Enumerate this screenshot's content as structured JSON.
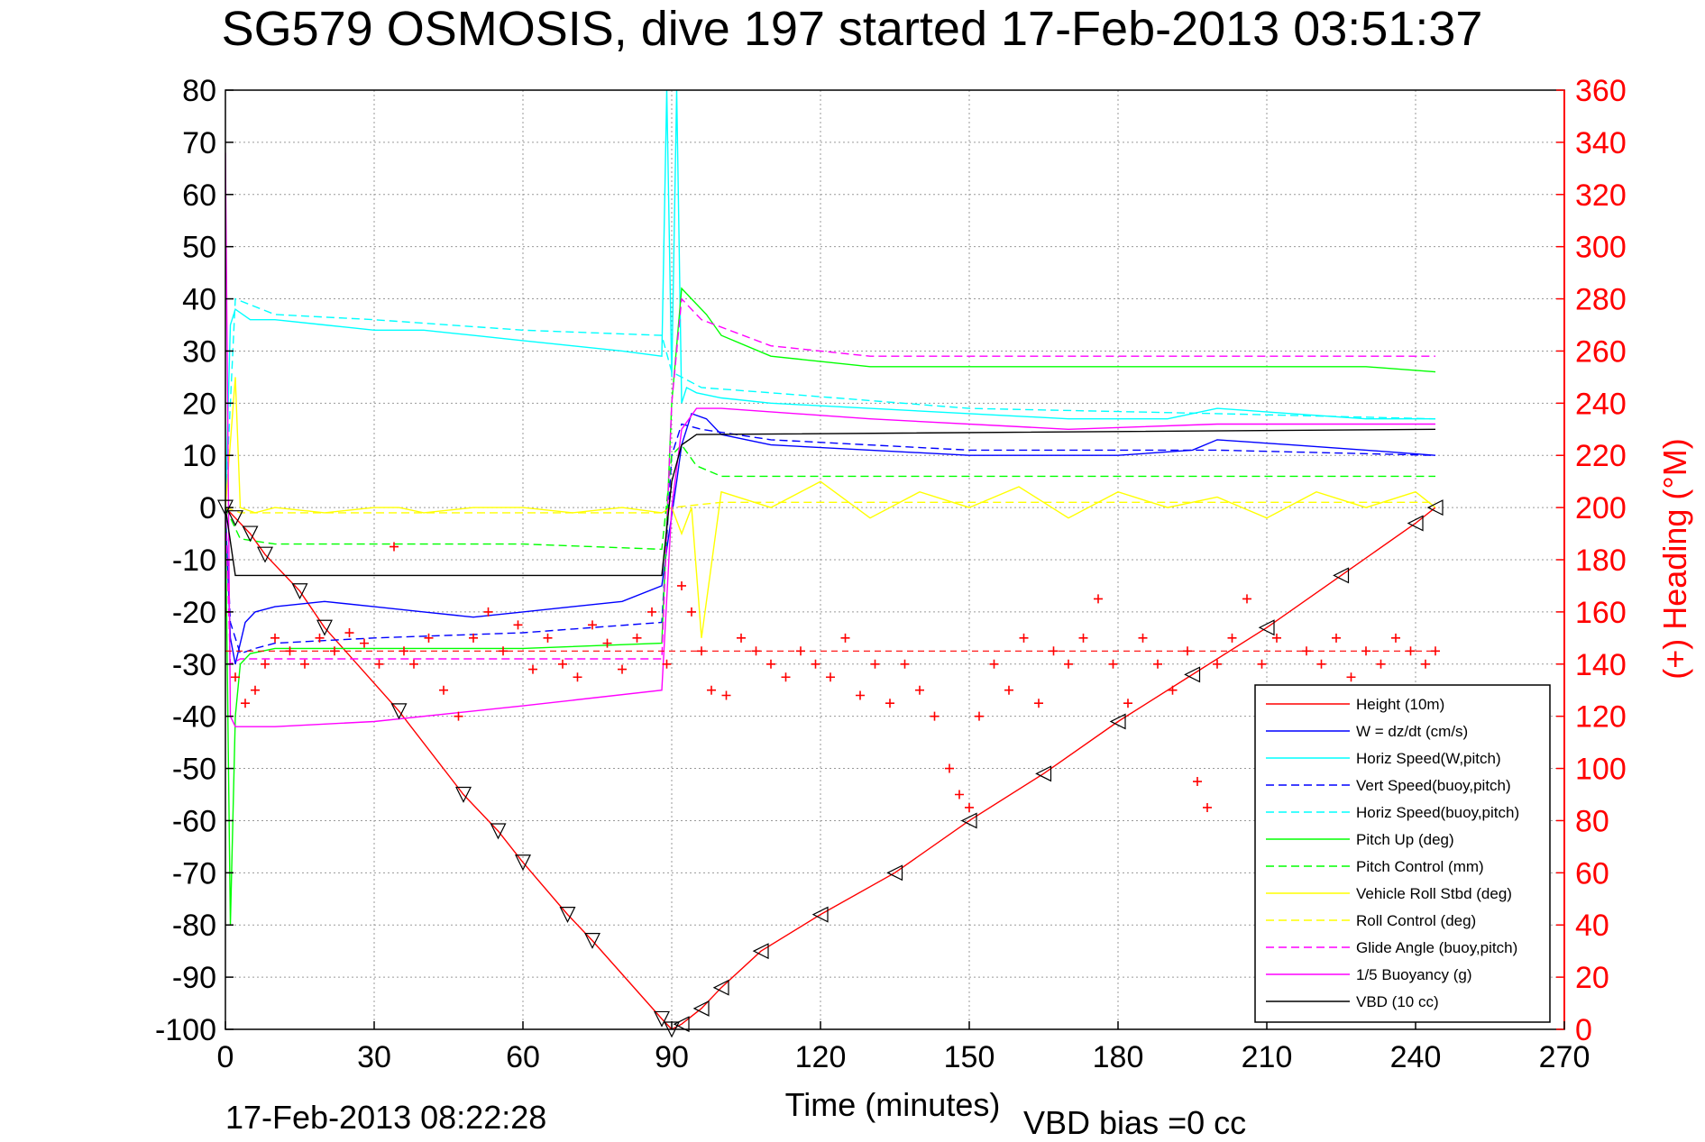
{
  "chart_data": {
    "type": "line",
    "title": "SG579 OSMOSIS, dive 197 started 17-Feb-2013 03:51:37",
    "xlabel": "Time (minutes)",
    "ylabel_right": "(+) Heading (°M)",
    "footer_date": "17-Feb-2013 08:22:28",
    "footer_bias": "VBD bias =0 cc",
    "xlim": [
      0,
      270
    ],
    "ylim": [
      -100,
      80
    ],
    "y2lim": [
      0,
      360
    ],
    "x_ticks": [
      0,
      30,
      60,
      90,
      120,
      150,
      180,
      210,
      240,
      270
    ],
    "y_ticks": [
      80,
      70,
      60,
      50,
      40,
      30,
      20,
      10,
      0,
      -10,
      -20,
      -30,
      -40,
      -50,
      -60,
      -70,
      -80,
      -90,
      -100
    ],
    "y2_ticks": [
      360,
      340,
      320,
      300,
      280,
      260,
      240,
      220,
      200,
      180,
      160,
      140,
      120,
      100,
      80,
      60,
      40,
      20,
      0
    ],
    "grid": true,
    "legend_position": "bottom-right",
    "legend": [
      {
        "label": "Height (10m)",
        "color": "#ff0000",
        "dash": "solid"
      },
      {
        "label": "W = dz/dt (cm/s)",
        "color": "#0000ff",
        "dash": "solid"
      },
      {
        "label": "Horiz Speed(W,pitch)",
        "color": "#00ffff",
        "dash": "solid"
      },
      {
        "label": "Vert Speed(buoy,pitch)",
        "color": "#0000ff",
        "dash": "dashed"
      },
      {
        "label": "Horiz Speed(buoy,pitch)",
        "color": "#00ffff",
        "dash": "dashed"
      },
      {
        "label": "Pitch Up (deg)",
        "color": "#00ff00",
        "dash": "solid"
      },
      {
        "label": "Pitch Control (mm)",
        "color": "#00ff00",
        "dash": "dashed"
      },
      {
        "label": "Vehicle Roll Stbd (deg)",
        "color": "#ffff00",
        "dash": "solid"
      },
      {
        "label": "Roll Control (deg)",
        "color": "#ffff00",
        "dash": "dashed"
      },
      {
        "label": "Glide Angle (buoy,pitch)",
        "color": "#ff00ff",
        "dash": "dashed"
      },
      {
        "label": "1/5 Buoyancy (g)",
        "color": "#ff00ff",
        "dash": "solid"
      },
      {
        "label": "VBD (10 cc)",
        "color": "#000000",
        "dash": "solid"
      }
    ],
    "series": [
      {
        "name": "Height (10m)",
        "color": "#ff0000",
        "axis": "left",
        "dash": "solid",
        "x": [
          0,
          2,
          5,
          8,
          15,
          20,
          35,
          48,
          55,
          60,
          69,
          74,
          88,
          90,
          92,
          96,
          100,
          108,
          120,
          135,
          150,
          165,
          180,
          195,
          210,
          225,
          240,
          244
        ],
        "y": [
          0,
          -2,
          -5,
          -9,
          -16,
          -23,
          -39,
          -55,
          -62,
          -68,
          -78,
          -83,
          -98,
          -100,
          -99,
          -96,
          -92,
          -85,
          -78,
          -70,
          -60,
          -51,
          -41,
          -32,
          -23,
          -13,
          -3,
          0
        ]
      },
      {
        "name": "W = dz/dt (cm/s)",
        "color": "#0000ff",
        "axis": "left",
        "dash": "solid",
        "x": [
          0,
          1,
          2,
          4,
          6,
          10,
          20,
          30,
          40,
          50,
          60,
          70,
          80,
          88,
          89,
          91,
          92,
          94,
          97,
          100,
          110,
          130,
          150,
          165,
          180,
          195,
          200,
          215,
          230,
          244
        ],
        "y": [
          0,
          -25,
          -30,
          -22,
          -20,
          -19,
          -18,
          -19,
          -20,
          -21,
          -20,
          -19,
          -18,
          -15,
          -8,
          5,
          12,
          18,
          17,
          14,
          12,
          11,
          10,
          10,
          10,
          11,
          13,
          12,
          11,
          10
        ]
      },
      {
        "name": "Horiz Speed(W,pitch)",
        "color": "#00ffff",
        "axis": "left",
        "dash": "solid",
        "x": [
          0,
          1,
          2,
          5,
          10,
          20,
          30,
          40,
          50,
          60,
          70,
          80,
          88,
          89,
          90,
          91,
          92,
          93,
          95,
          100,
          110,
          130,
          150,
          170,
          190,
          200,
          215,
          230,
          244
        ],
        "y": [
          0,
          35,
          38,
          36,
          36,
          35,
          34,
          34,
          33,
          32,
          31,
          30,
          29,
          80,
          25,
          80,
          20,
          23,
          22,
          21,
          20,
          19,
          18,
          17,
          17,
          19,
          18,
          17,
          17
        ]
      },
      {
        "name": "Vert Speed(buoy,pitch)",
        "color": "#0000ff",
        "axis": "left",
        "dash": "dashed",
        "x": [
          0,
          1,
          3,
          6,
          10,
          30,
          60,
          88,
          90,
          92,
          96,
          110,
          150,
          200,
          244
        ],
        "y": [
          0,
          -22,
          -28,
          -27,
          -26,
          -25,
          -24,
          -22,
          10,
          16,
          15,
          13,
          11,
          11,
          10
        ]
      },
      {
        "name": "Horiz Speed(buoy,pitch)",
        "color": "#00ffff",
        "axis": "left",
        "dash": "dashed",
        "x": [
          0,
          2,
          10,
          30,
          60,
          88,
          90,
          92,
          96,
          110,
          150,
          200,
          244
        ],
        "y": [
          0,
          40,
          37,
          36,
          34,
          33,
          26,
          25,
          23,
          22,
          19,
          18,
          17
        ]
      },
      {
        "name": "Pitch Up (deg)",
        "color": "#00ff00",
        "axis": "left",
        "dash": "solid",
        "x": [
          0,
          1,
          2,
          3,
          5,
          10,
          30,
          60,
          88,
          90,
          92,
          94,
          97,
          100,
          110,
          130,
          150,
          170,
          190,
          210,
          230,
          244
        ],
        "y": [
          0,
          -80,
          -40,
          -30,
          -28,
          -27,
          -27,
          -27,
          -26,
          20,
          42,
          40,
          37,
          33,
          29,
          27,
          27,
          27,
          27,
          27,
          27,
          26
        ]
      },
      {
        "name": "Pitch Control (mm)",
        "color": "#00ff00",
        "axis": "left",
        "dash": "dashed",
        "x": [
          0,
          3,
          10,
          30,
          60,
          88,
          90,
          92,
          95,
          100,
          120,
          150,
          200,
          244
        ],
        "y": [
          0,
          -6,
          -7,
          -7,
          -7,
          -8,
          10,
          12,
          8,
          6,
          6,
          6,
          6,
          6
        ]
      },
      {
        "name": "Vehicle Roll Stbd (deg)",
        "color": "#ffff00",
        "axis": "left",
        "dash": "solid",
        "x": [
          0,
          2,
          3,
          6,
          10,
          20,
          30,
          35,
          40,
          50,
          60,
          70,
          80,
          88,
          90,
          92,
          94,
          96,
          100,
          110,
          120,
          130,
          140,
          150,
          160,
          170,
          180,
          190,
          200,
          210,
          220,
          230,
          240,
          244
        ],
        "y": [
          0,
          25,
          0,
          -1,
          0,
          -1,
          0,
          0,
          -1,
          0,
          0,
          -1,
          0,
          -1,
          0,
          -5,
          0,
          -25,
          3,
          0,
          5,
          -2,
          3,
          0,
          4,
          -2,
          3,
          0,
          2,
          -2,
          3,
          0,
          3,
          0
        ]
      },
      {
        "name": "Roll Control (deg)",
        "color": "#ffff00",
        "axis": "left",
        "dash": "dashed",
        "x": [
          0,
          3,
          10,
          88,
          90,
          100,
          244
        ],
        "y": [
          0,
          -1,
          -1,
          -1,
          0,
          1,
          1
        ]
      },
      {
        "name": "Glide Angle (buoy,pitch)",
        "color": "#ff00ff",
        "axis": "left",
        "dash": "dashed",
        "x": [
          0,
          1,
          3,
          6,
          10,
          30,
          60,
          88,
          90,
          92,
          96,
          110,
          130,
          150,
          180,
          210,
          244
        ],
        "y": [
          0,
          -30,
          -29,
          -29,
          -29,
          -29,
          -29,
          -29,
          20,
          40,
          36,
          31,
          29,
          29,
          29,
          29,
          29
        ]
      },
      {
        "name": "1/5 Buoyancy (g)",
        "color": "#ff00ff",
        "axis": "left",
        "dash": "solid",
        "x": [
          0,
          1,
          2,
          5,
          10,
          30,
          60,
          88,
          90,
          92,
          95,
          100,
          130,
          170,
          200,
          244
        ],
        "y": [
          68,
          -40,
          -42,
          -42,
          -42,
          -41,
          -38,
          -35,
          0,
          15,
          19,
          19,
          17,
          15,
          16,
          16
        ]
      },
      {
        "name": "VBD (10 cc)",
        "color": "#000000",
        "axis": "left",
        "dash": "solid",
        "x": [
          0,
          2,
          88,
          90,
          92,
          95,
          244
        ],
        "y": [
          0,
          -13,
          -13,
          5,
          12,
          14,
          15
        ]
      },
      {
        "name": "Heading",
        "color": "#ff0000",
        "axis": "right",
        "dash": "markers",
        "target": 145,
        "x": [
          0,
          2,
          4,
          6,
          8,
          10,
          13,
          16,
          19,
          22,
          25,
          28,
          31,
          34,
          36,
          38,
          41,
          44,
          47,
          50,
          53,
          56,
          59,
          62,
          65,
          68,
          71,
          74,
          77,
          80,
          83,
          86,
          89,
          92,
          94,
          96,
          98,
          101,
          104,
          107,
          110,
          113,
          116,
          119,
          122,
          125,
          128,
          131,
          134,
          137,
          140,
          143,
          146,
          148,
          150,
          152,
          155,
          158,
          161,
          164,
          167,
          170,
          173,
          176,
          179,
          182,
          185,
          188,
          191,
          194,
          196,
          198,
          200,
          203,
          206,
          209,
          212,
          215,
          218,
          221,
          224,
          227,
          230,
          233,
          236,
          239,
          242,
          244
        ],
        "y": [
          160,
          135,
          125,
          130,
          140,
          150,
          145,
          140,
          150,
          145,
          152,
          148,
          140,
          185,
          145,
          140,
          150,
          130,
          120,
          150,
          160,
          145,
          155,
          138,
          150,
          140,
          135,
          155,
          148,
          138,
          150,
          160,
          140,
          170,
          160,
          145,
          130,
          128,
          150,
          145,
          140,
          135,
          145,
          140,
          135,
          150,
          128,
          140,
          125,
          140,
          130,
          120,
          100,
          90,
          85,
          120,
          140,
          130,
          150,
          125,
          145,
          140,
          150,
          165,
          140,
          125,
          150,
          140,
          130,
          145,
          95,
          85,
          140,
          150,
          165,
          140,
          150,
          130,
          145,
          140,
          150,
          135,
          145,
          140,
          150,
          145,
          140,
          145
        ]
      }
    ]
  }
}
